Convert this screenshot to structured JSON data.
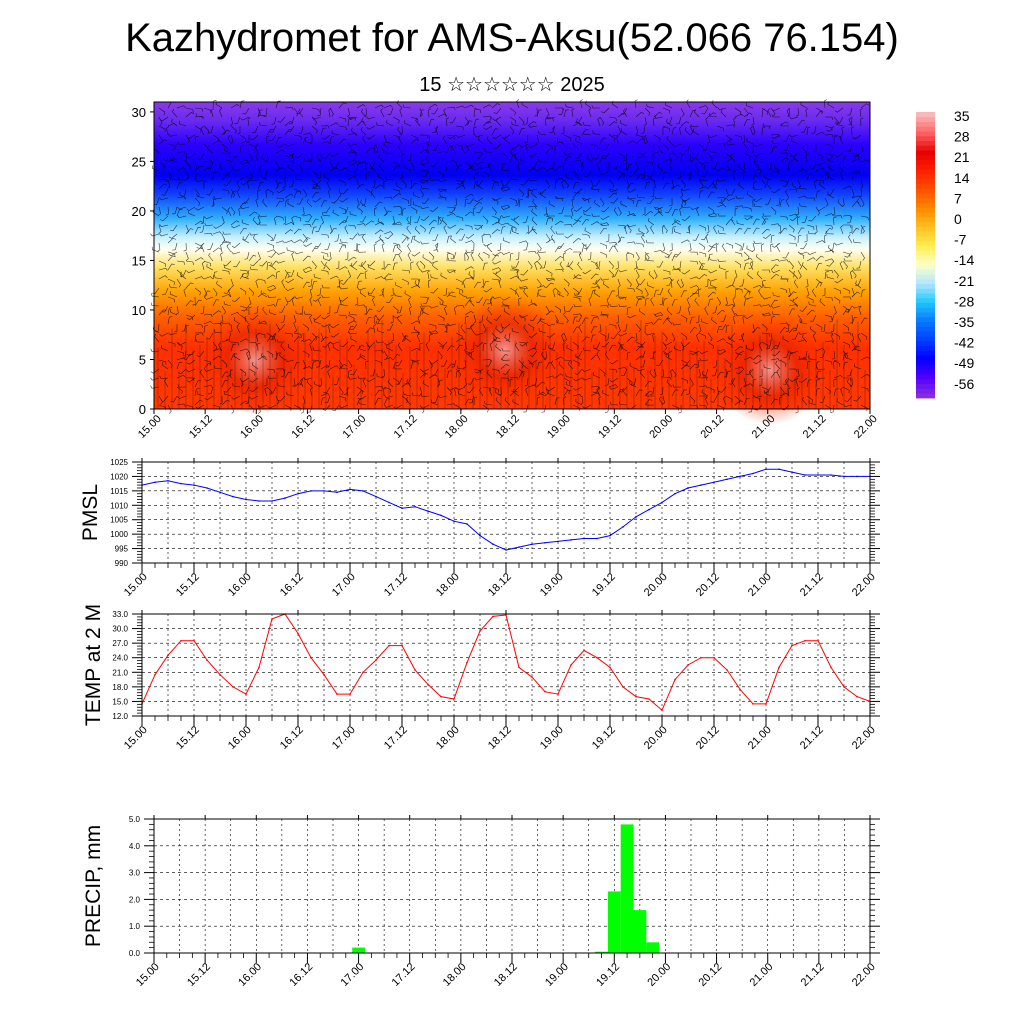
{
  "header": {
    "title": "Kazhydromet for AMS-Aksu(52.066 76.154)",
    "subtitle": "15 ☆☆☆☆☆☆ 2025"
  },
  "colors": {
    "pmsl_line": "#0000ff",
    "temp_line": "#ff0000",
    "precip_bar": "#00ff00",
    "colorbar": [
      "#8a2be2",
      "#5000ff",
      "#0000ff",
      "#0040ff",
      "#0a78ff",
      "#1ec8ff",
      "#b4e6ff",
      "#ffffc8",
      "#ffee50",
      "#ffc020",
      "#ff8800",
      "#ff5000",
      "#ff2000",
      "#e60000",
      "#ff6060",
      "#f8b8b8"
    ]
  },
  "chart_data": [
    {
      "type": "heatmap",
      "title": "",
      "ylabel": "",
      "ylim": [
        0,
        30
      ],
      "yticks": [
        "0",
        "5",
        "10",
        "15",
        "20",
        "25",
        "30"
      ],
      "xticks": [
        "15.00",
        "15.12",
        "16.00",
        "16.12",
        "17.00",
        "17.12",
        "18.00",
        "18.12",
        "19.00",
        "19.12",
        "20.00",
        "20.12",
        "21.00",
        "21.12",
        "22.00"
      ],
      "colorbar_labels": [
        "35",
        "28",
        "21",
        "14",
        "7",
        "0",
        "-7",
        "-14",
        "-21",
        "-28",
        "-35",
        "-42",
        "-49",
        "-56"
      ],
      "layers": [
        {
          "from": 0,
          "to": 11,
          "label": "21"
        },
        {
          "from": 11,
          "to": 14,
          "label": "7"
        },
        {
          "from": 14,
          "to": 16.5,
          "label": "-7"
        },
        {
          "from": 16.5,
          "to": 21,
          "label": "-28"
        },
        {
          "from": 21,
          "to": 27,
          "label": "-56"
        },
        {
          "from": 27,
          "to": 31,
          "label": "-49"
        }
      ],
      "overlay": "wind barbs"
    },
    {
      "type": "line",
      "ylabel": "PMSL",
      "ylim": [
        990,
        1025
      ],
      "yticks": [
        "990",
        "995",
        "1000",
        "1005",
        "1010",
        "1015",
        "1020",
        "1025"
      ],
      "xticks": [
        "15.00",
        "15.12",
        "16.00",
        "16.12",
        "17.00",
        "17.12",
        "18.00",
        "18.12",
        "19.00",
        "19.12",
        "20.00",
        "20.12",
        "21.00",
        "21.12",
        "22.00"
      ],
      "x": [
        0,
        3,
        6,
        9,
        12,
        15,
        18,
        21,
        24,
        27,
        30,
        33,
        36,
        39,
        42,
        45,
        48,
        51,
        54,
        57,
        60,
        63,
        66,
        69,
        72,
        75,
        78,
        81,
        84,
        87,
        90,
        93,
        96,
        99,
        102,
        105,
        108,
        111,
        114,
        117,
        120,
        123,
        126,
        129,
        132,
        135,
        138,
        141,
        144,
        147,
        150,
        153,
        156,
        159,
        162,
        165,
        168
      ],
      "series": [
        {
          "name": "",
          "values": [
            1017,
            1018,
            1018.5,
            1017.5,
            1017,
            1016,
            1014.5,
            1013,
            1012,
            1011.5,
            1011.5,
            1012.5,
            1014,
            1015,
            1015,
            1014.5,
            1015.5,
            1015,
            1013,
            1011,
            1009,
            1009.5,
            1008,
            1006.5,
            1004.5,
            1003.5,
            999.5,
            996.5,
            994.5,
            995.5,
            996.5,
            997,
            997.5,
            998,
            998.5,
            998.5,
            999.5,
            1002.5,
            1006,
            1008.5,
            1011,
            1014,
            1016,
            1017,
            1018,
            1019,
            1020,
            1021,
            1022.5,
            1022.5,
            1021.5,
            1020.5,
            1020.5,
            1020.5,
            1020,
            1020,
            1020
          ]
        }
      ]
    },
    {
      "type": "line",
      "ylabel": "TEMP at 2 M",
      "ylim": [
        12,
        33
      ],
      "yticks": [
        "12.0",
        "15.0",
        "18.0",
        "21.0",
        "24.0",
        "27.0",
        "30.0",
        "33.0"
      ],
      "xticks": [
        "15.00",
        "15.12",
        "16.00",
        "16.12",
        "17.00",
        "17.12",
        "18.00",
        "18.12",
        "19.00",
        "19.12",
        "20.00",
        "20.12",
        "21.00",
        "21.12",
        "22.00"
      ],
      "x": [
        0,
        3,
        6,
        9,
        12,
        15,
        18,
        21,
        24,
        27,
        30,
        33,
        36,
        39,
        42,
        45,
        48,
        51,
        54,
        57,
        60,
        63,
        66,
        69,
        72,
        75,
        78,
        81,
        84,
        87,
        90,
        93,
        96,
        99,
        102,
        105,
        108,
        111,
        114,
        117,
        120,
        123,
        126,
        129,
        132,
        135,
        138,
        141,
        144,
        147,
        150,
        153,
        156,
        159,
        162,
        165,
        168
      ],
      "series": [
        {
          "name": "",
          "values": [
            14.5,
            20.5,
            24.5,
            27.5,
            27.5,
            23.5,
            20.5,
            18,
            16.5,
            22,
            32,
            33,
            29,
            24,
            20.5,
            16.5,
            16.5,
            21,
            23.5,
            26.5,
            26.5,
            21.5,
            18.5,
            16,
            15.5,
            23,
            29.5,
            32.5,
            32.8,
            22,
            20,
            17,
            16.5,
            22.5,
            25.5,
            24,
            22,
            18,
            16,
            15.5,
            13.2,
            19.5,
            22.5,
            24,
            24,
            21.5,
            17.5,
            14.5,
            14.5,
            22,
            26.5,
            27.5,
            27.5,
            22,
            18,
            16,
            15
          ]
        }
      ]
    },
    {
      "type": "bar",
      "ylabel": "PRECIP, mm",
      "ylim": [
        0,
        5
      ],
      "yticks": [
        "0.0",
        "1.0",
        "2.0",
        "3.0",
        "4.0",
        "5.0"
      ],
      "xticks": [
        "15.00",
        "15.12",
        "16.00",
        "16.12",
        "17.00",
        "17.12",
        "18.00",
        "18.12",
        "19.00",
        "19.12",
        "20.00",
        "20.12",
        "21.00",
        "21.12",
        "22.00"
      ],
      "x": [
        48,
        105,
        108,
        111,
        114,
        117
      ],
      "series": [
        {
          "name": "",
          "values": [
            0.2,
            0.05,
            2.3,
            4.8,
            1.6,
            0.4
          ]
        }
      ]
    }
  ]
}
